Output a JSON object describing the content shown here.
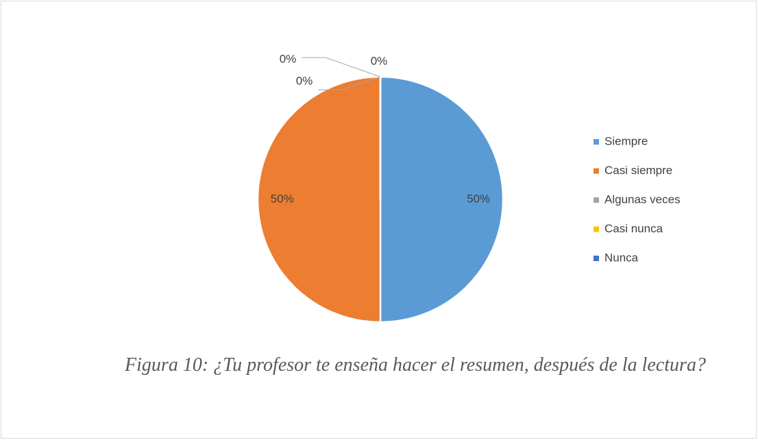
{
  "chart_data": {
    "type": "pie",
    "categories": [
      "Siempre",
      "Casi siempre",
      "Algunas veces",
      "Casi nunca",
      "Nunca"
    ],
    "values": [
      50,
      50,
      0,
      0,
      0
    ],
    "value_labels": [
      "50%",
      "50%",
      "0%",
      "0%",
      "0%"
    ],
    "colors": [
      "#5b9bd5",
      "#ed7d31",
      "#a5a5a5",
      "#ffc000",
      "#4472c4"
    ],
    "legend": "right",
    "caption": "Figura 10: ¿Tu profesor te enseña hacer el resumen, después de la lectura?"
  }
}
